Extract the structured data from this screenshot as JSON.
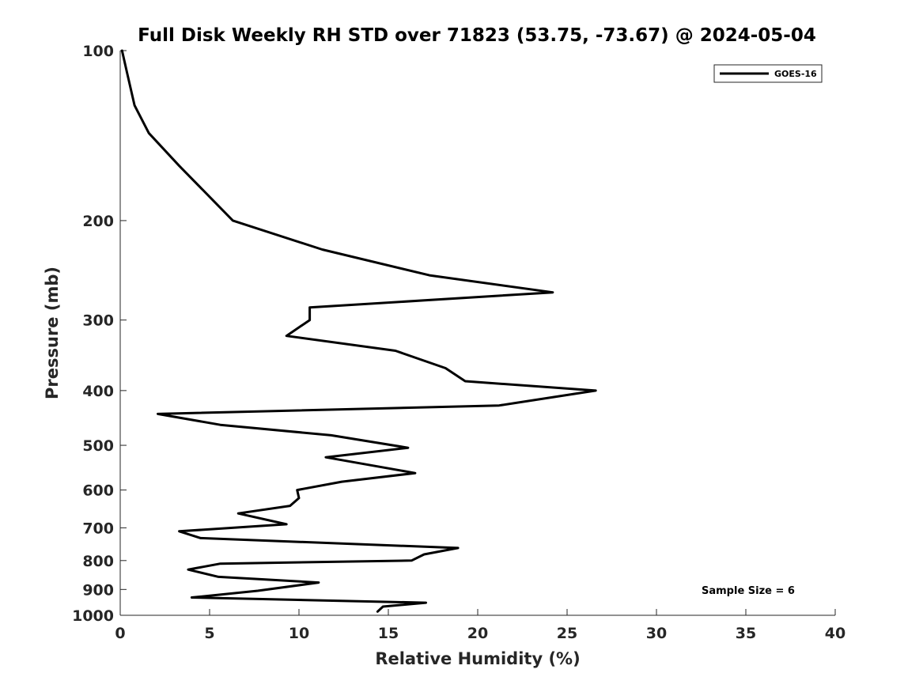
{
  "chart_data": {
    "type": "line",
    "title": "Full Disk Weekly RH STD over 71823 (53.75, -73.67) @ 2024-05-04",
    "xlabel": "Relative Humidity (%)",
    "ylabel": "Pressure (mb)",
    "xlim": [
      0,
      40
    ],
    "ylim": [
      100,
      1000
    ],
    "y_scale": "log",
    "y_reversed": true,
    "grid": false,
    "legend_position": "top-right",
    "x_ticks": [
      0,
      5,
      10,
      15,
      20,
      25,
      30,
      35,
      40
    ],
    "x_tick_labels": [
      "0",
      "5",
      "10",
      "15",
      "20",
      "25",
      "30",
      "35",
      "40"
    ],
    "y_ticks": [
      100,
      200,
      300,
      400,
      500,
      600,
      700,
      800,
      900,
      1000
    ],
    "y_tick_labels": [
      "100",
      "200",
      "300",
      "400",
      "500",
      "600",
      "700",
      "800",
      "900",
      "1000"
    ],
    "annotation": "Sample Size = 6",
    "series": [
      {
        "name": "GOES-16",
        "color": "#000000",
        "x": [
          0.1,
          0.4,
          0.8,
          1.6,
          3.3,
          6.3,
          11.3,
          17.3,
          24.2,
          10.6,
          10.6,
          9.3,
          15.4,
          18.2,
          19.3,
          26.6,
          21.2,
          2.1,
          5.6,
          11.8,
          16.1,
          11.5,
          16.5,
          12.4,
          9.9,
          10.0,
          9.5,
          6.6,
          9.3,
          3.3,
          4.5,
          18.9,
          17.0,
          16.3,
          5.6,
          3.8,
          5.5,
          11.1,
          7.7,
          4.0,
          17.1,
          14.7,
          14.4
        ],
        "y": [
          100,
          110,
          125,
          140,
          160,
          200,
          225,
          250,
          268,
          285,
          300,
          320,
          340,
          365,
          385,
          400,
          425,
          440,
          460,
          480,
          505,
          525,
          560,
          580,
          600,
          620,
          640,
          660,
          690,
          710,
          730,
          760,
          780,
          800,
          810,
          830,
          855,
          875,
          905,
          930,
          950,
          965,
          985
        ]
      }
    ]
  }
}
